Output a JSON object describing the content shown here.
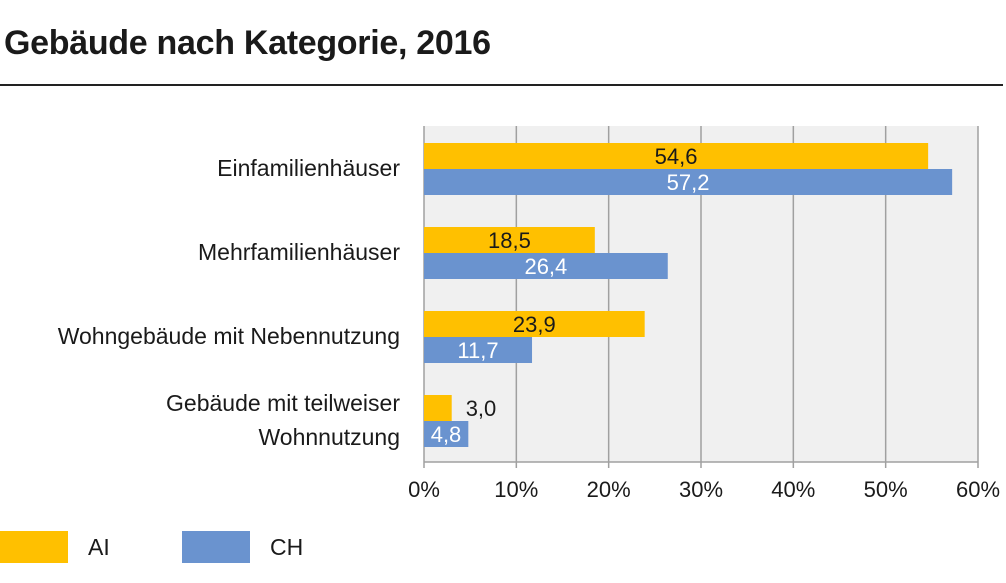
{
  "title": "Gebäude nach Kategorie, 2016",
  "colors": {
    "ai": "#FFC000",
    "ch": "#6A93CF",
    "plot_bg": "#F0F0F0",
    "grid": "#A0A0A0"
  },
  "legend": {
    "ai_label": "AI",
    "ch_label": "CH"
  },
  "chart_data": {
    "type": "bar",
    "orientation": "horizontal",
    "categories": [
      [
        "Einfamilienhäuser"
      ],
      [
        "Mehrfamilienhäuser"
      ],
      [
        "Wohngebäude mit Nebennutzung"
      ],
      [
        "Gebäude mit teilweiser",
        "Wohnnutzung"
      ]
    ],
    "series": [
      {
        "name": "AI",
        "values": [
          54.6,
          18.5,
          23.9,
          3.0
        ],
        "labels": [
          "54,6",
          "18,5",
          "23,9",
          "3,0"
        ]
      },
      {
        "name": "CH",
        "values": [
          57.2,
          26.4,
          11.7,
          4.8
        ],
        "labels": [
          "57,2",
          "26,4",
          "11,7",
          "4,8"
        ]
      }
    ],
    "xlim": [
      0,
      60
    ],
    "xticks": [
      "0%",
      "10%",
      "20%",
      "30%",
      "40%",
      "50%",
      "60%"
    ],
    "grid": true,
    "legend_position": "bottom-left"
  }
}
